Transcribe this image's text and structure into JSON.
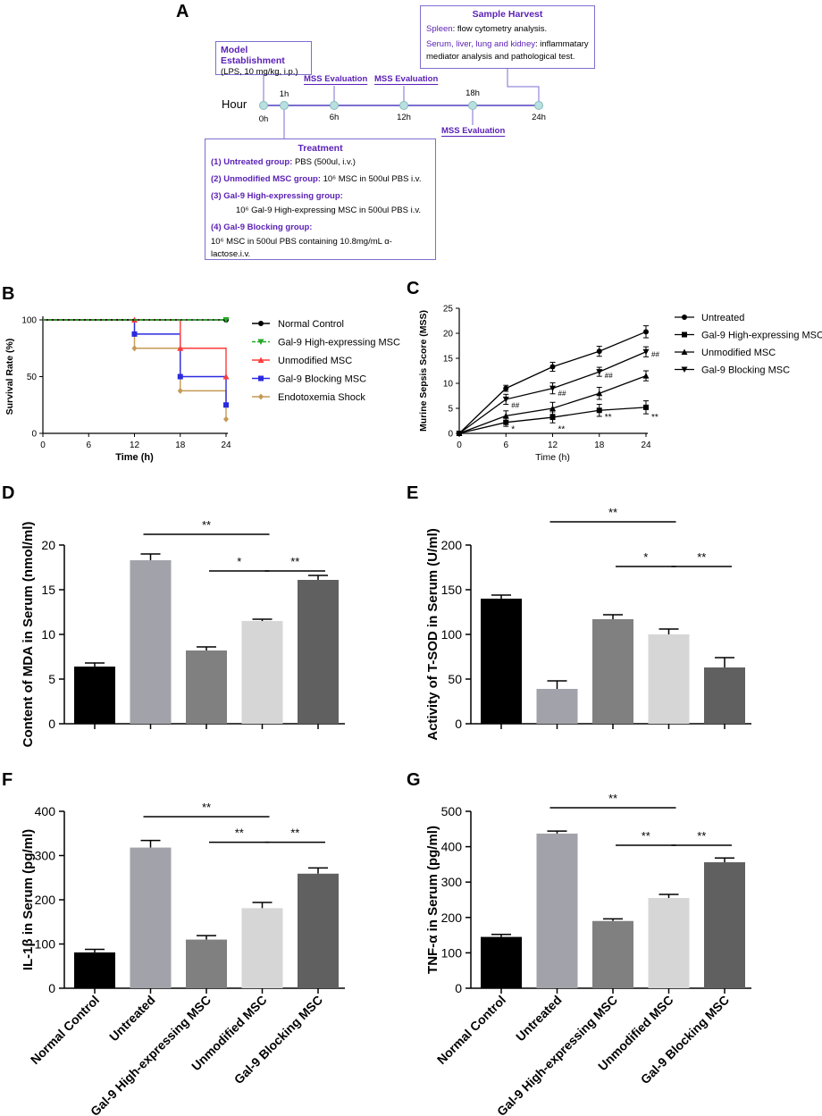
{
  "panels": {
    "A": "A",
    "B": "B",
    "C": "C",
    "D": "D",
    "E": "E",
    "F": "F",
    "G": "G"
  },
  "timeline": {
    "axis_label": "Hour",
    "ticks": [
      "0h",
      "1h",
      "6h",
      "12h",
      "18h",
      "24h"
    ],
    "mss_label": "MSS Evaluation",
    "model_box": {
      "title": "Model Establishment",
      "text": "(LPS, 10 mg/kg, i.p.)"
    },
    "harvest_box": {
      "title": "Sample Harvest",
      "line1_bold": "Spleen",
      "line1_rest": ": flow cytometry analysis.",
      "line2_bold": "Serum, liver, lung and kidney",
      "line2_rest": ": inflammatary",
      "line3": "mediator analysis and pathological test."
    },
    "treatment_box": {
      "title": "Treatment",
      "g1_bold": "(1) Untreated group:",
      "g1_rest": " PBS (500ul, i.v.)",
      "g2_bold": "(2) Unmodified MSC group:",
      "g2_rest": " 10⁶ MSC in 500ul PBS i.v.",
      "g3_bold": "(3) Gal-9 High-expressing group:",
      "g3_rest": "10⁶ Gal-9 High-expressing MSC in 500ul PBS i.v.",
      "g4_bold": "(4) Gal-9 Blocking group:",
      "g4_rest": "10⁶ MSC in 500ul PBS containing 10.8mg/mL α-lactose.i.v."
    }
  },
  "colors": {
    "normal": "#000000",
    "gal9high": "#22aa22",
    "unmod": "#ff3b3b",
    "blocking": "#2a2ae0",
    "shock": "#c49a55",
    "bar_normal": "#000000",
    "bar_untreated": "#a2a2aa",
    "bar_high": "#808080",
    "bar_unmod": "#d6d6d6",
    "bar_block": "#606060"
  },
  "chart_data": [
    {
      "id": "B",
      "type": "line",
      "title": "",
      "xlabel": "Time (h)",
      "ylabel": "Survival Rate (%)",
      "xlim": [
        0,
        24
      ],
      "ylim": [
        0,
        100
      ],
      "xticks": [
        "0",
        "6",
        "12",
        "18",
        "24"
      ],
      "yticks": [
        "0",
        "50",
        "100"
      ],
      "series": [
        {
          "name": "Normal Control",
          "x": [
            0,
            24
          ],
          "y": [
            100,
            100
          ]
        },
        {
          "name": "Gal-9 High-expressing MSC",
          "x": [
            0,
            24
          ],
          "y": [
            100,
            100
          ]
        },
        {
          "name": "Unmodified MSC",
          "x": [
            0,
            12,
            18,
            24
          ],
          "y": [
            100,
            100,
            75,
            50
          ]
        },
        {
          "name": "Gal-9 Blocking MSC",
          "x": [
            0,
            12,
            18,
            24
          ],
          "y": [
            100,
            87.5,
            50,
            25
          ]
        },
        {
          "name": "Endotoxemia Shock",
          "x": [
            0,
            12,
            18,
            24
          ],
          "y": [
            100,
            75,
            37.5,
            12.5
          ]
        }
      ]
    },
    {
      "id": "C",
      "type": "line",
      "title": "",
      "xlabel": "Time (h)",
      "ylabel": "Murine Sepsis Score (MSS)",
      "xlim": [
        0,
        24
      ],
      "ylim": [
        0,
        25
      ],
      "xticks": [
        "0",
        "6",
        "12",
        "18",
        "24"
      ],
      "yticks": [
        "0",
        "5",
        "10",
        "15",
        "20",
        "25"
      ],
      "series": [
        {
          "name": "Untreated",
          "x": [
            0,
            6,
            12,
            18,
            24
          ],
          "y": [
            0,
            9,
            13.3,
            16.4,
            20.3
          ],
          "err": [
            0,
            0.6,
            0.9,
            1.0,
            1.2
          ]
        },
        {
          "name": "Gal-9 High-expressing MSC",
          "x": [
            0,
            6,
            12,
            18,
            24
          ],
          "y": [
            0,
            2.2,
            3.2,
            4.6,
            5.2
          ],
          "err": [
            0,
            0.8,
            1.1,
            1.2,
            1.3
          ]
        },
        {
          "name": "Unmodified MSC",
          "x": [
            0,
            6,
            12,
            18,
            24
          ],
          "y": [
            0,
            3.5,
            5,
            8,
            11.5
          ],
          "err": [
            0,
            1.0,
            1.2,
            1.2,
            1.0
          ]
        },
        {
          "name": "Gal-9 Blocking MSC",
          "x": [
            0,
            6,
            12,
            18,
            24
          ],
          "y": [
            0,
            6.8,
            9,
            12.3,
            16.3
          ],
          "err": [
            0,
            1.0,
            1.1,
            0.9,
            1.0
          ]
        }
      ],
      "annotations": [
        {
          "text": "*",
          "x": 6,
          "y": 0.8
        },
        {
          "text": "##",
          "x": 6,
          "y": 5.6
        },
        {
          "text": "**",
          "x": 12,
          "y": 0.8
        },
        {
          "text": "##",
          "x": 12,
          "y": 8.0
        },
        {
          "text": "**",
          "x": 18,
          "y": 3.2
        },
        {
          "text": "##",
          "x": 18,
          "y": 11.6
        },
        {
          "text": "**",
          "x": 24,
          "y": 3.2
        },
        {
          "text": "##",
          "x": 24,
          "y": 15.8
        }
      ]
    },
    {
      "id": "D",
      "type": "bar",
      "ylabel": "Content of MDA in Serum (nmol/ml)",
      "ylim": [
        0,
        20
      ],
      "yticks": [
        "0",
        "5",
        "10",
        "15",
        "20"
      ],
      "categories": [
        "Normal Control",
        "Untreated",
        "Gal-9 High-expressing MSC",
        "Unmodified MSC",
        "Gal-9 Blocking MSC"
      ],
      "values": [
        6.4,
        18.3,
        8.2,
        11.5,
        16.1
      ],
      "errors": [
        0.4,
        0.7,
        0.4,
        0.2,
        0.5
      ],
      "significance": [
        {
          "from": 1,
          "to": 3,
          "level": 21.2,
          "label": "**"
        },
        {
          "from": 2,
          "to": 3,
          "level": 17.1,
          "label": "*"
        },
        {
          "from": 3,
          "to": 4,
          "level": 17.1,
          "label": "**"
        }
      ]
    },
    {
      "id": "E",
      "type": "bar",
      "ylabel": "Activity of T-SOD in Serum (U/ml)",
      "ylim": [
        0,
        200
      ],
      "yticks": [
        "0",
        "50",
        "100",
        "150",
        "200"
      ],
      "categories": [
        "Normal Control",
        "Untreated",
        "Gal-9 High-expressing MSC",
        "Unmodified MSC",
        "Gal-9 Blocking MSC"
      ],
      "values": [
        140,
        39,
        117,
        100,
        63
      ],
      "errors": [
        4,
        9,
        5,
        6,
        11
      ],
      "significance": [
        {
          "from": 1,
          "to": 3,
          "level": 226,
          "label": "**"
        },
        {
          "from": 2,
          "to": 3,
          "level": 176,
          "label": "*"
        },
        {
          "from": 3,
          "to": 4,
          "level": 176,
          "label": "**"
        }
      ]
    },
    {
      "id": "F",
      "type": "bar",
      "ylabel": "IL-1β in Serum (pg/ml)",
      "ylim": [
        0,
        400
      ],
      "yticks": [
        "0",
        "100",
        "200",
        "300",
        "400"
      ],
      "categories": [
        "Normal Control",
        "Untreated",
        "Gal-9 High-expressing MSC",
        "Unmodified MSC",
        "Gal-9 Blocking MSC"
      ],
      "values": [
        81,
        318,
        110,
        181,
        259
      ],
      "errors": [
        7,
        16,
        9,
        13,
        13
      ],
      "significance": [
        {
          "from": 1,
          "to": 3,
          "level": 388,
          "label": "**"
        },
        {
          "from": 2,
          "to": 3,
          "level": 330,
          "label": "**"
        },
        {
          "from": 3,
          "to": 4,
          "level": 330,
          "label": "**"
        }
      ]
    },
    {
      "id": "G",
      "type": "bar",
      "ylabel": "TNF-α in Serum (pg/ml)",
      "ylim": [
        0,
        500
      ],
      "yticks": [
        "0",
        "100",
        "200",
        "300",
        "400",
        "500"
      ],
      "categories": [
        "Normal Control",
        "Untreated",
        "Gal-9 High-expressing MSC",
        "Unmodified MSC",
        "Gal-9 Blocking MSC"
      ],
      "values": [
        145,
        437,
        190,
        255,
        356
      ],
      "errors": [
        7,
        7,
        6,
        10,
        12
      ],
      "significance": [
        {
          "from": 1,
          "to": 3,
          "level": 510,
          "label": "**"
        },
        {
          "from": 2,
          "to": 3,
          "level": 404,
          "label": "**"
        },
        {
          "from": 3,
          "to": 4,
          "level": 404,
          "label": "**"
        }
      ]
    }
  ]
}
